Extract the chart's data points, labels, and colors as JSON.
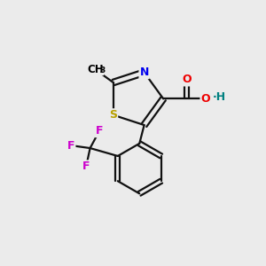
{
  "background_color": "#ebebeb",
  "atom_colors": {
    "S": "#b8a000",
    "N": "#0000ee",
    "O": "#ee0000",
    "F": "#cc00cc",
    "C": "#000000",
    "H": "#008080"
  },
  "figsize": [
    3.0,
    3.0
  ],
  "dpi": 100
}
